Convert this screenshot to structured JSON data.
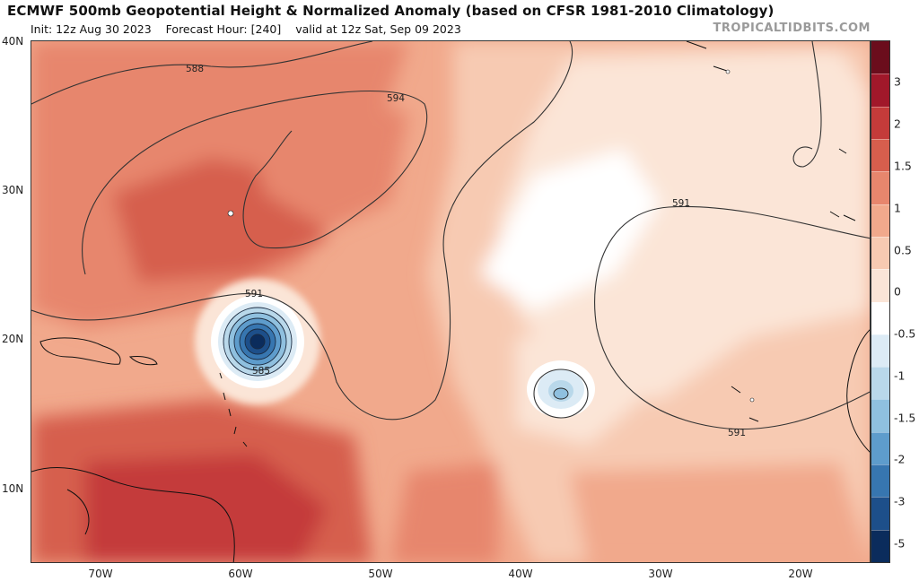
{
  "header": {
    "title": "ECMWF 500mb Geopotential Height & Normalized Anomaly (based on CFSR 1981-2010 Climatology)",
    "init": "Init: 12z Aug 30 2023",
    "forecast_hour": "Forecast Hour: [240]",
    "valid": "valid at 12z Sat, Sep 09 2023",
    "credit": "TROPICALTIDBITS.COM"
  },
  "axes": {
    "lat_labels": [
      "40N",
      "30N",
      "20N",
      "10N"
    ],
    "lon_labels": [
      "70W",
      "60W",
      "50W",
      "40W",
      "30W",
      "20W"
    ]
  },
  "colorbar": {
    "labels": [
      "3",
      "2",
      "1.5",
      "1",
      "0.5",
      "0",
      "-0.5",
      "-1",
      "-1.5",
      "-2",
      "-3",
      "-5"
    ],
    "colors": [
      "#6b0d1c",
      "#a1182a",
      "#c43b3a",
      "#d65e4d",
      "#e7866d",
      "#f1a98c",
      "#f7cab2",
      "#fbe5d7",
      "#ffffff",
      "#dcebf5",
      "#b9d8ea",
      "#8fc0df",
      "#5e9ccc",
      "#3776b0",
      "#1d4f8a",
      "#0b2c5c"
    ]
  },
  "contours": {
    "labels": [
      "588",
      "594",
      "591",
      "585",
      "591",
      "591"
    ]
  },
  "legend_colors": {
    "land_outline": "#111111",
    "contour": "#333333"
  }
}
